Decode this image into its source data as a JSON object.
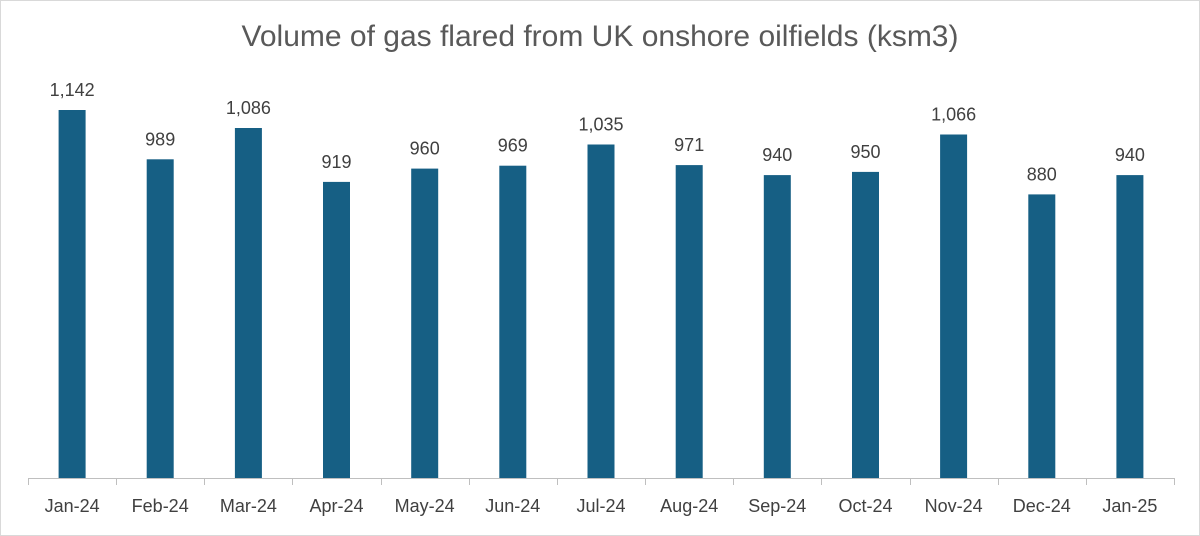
{
  "chart_data": {
    "type": "bar",
    "title": "Volume of gas flared from UK onshore oilfields (ksm3)",
    "xlabel": "",
    "ylabel": "",
    "categories": [
      "Jan-24",
      "Feb-24",
      "Mar-24",
      "Apr-24",
      "May-24",
      "Jun-24",
      "Jul-24",
      "Aug-24",
      "Sep-24",
      "Oct-24",
      "Nov-24",
      "Dec-24",
      "Jan-25"
    ],
    "values": [
      1142,
      989,
      1086,
      919,
      960,
      969,
      1035,
      971,
      940,
      950,
      1066,
      880,
      940
    ],
    "data_labels": [
      "1,142",
      "989",
      "1,086",
      "919",
      "960",
      "969",
      "1,035",
      "971",
      "940",
      "950",
      "1,066",
      "880",
      "940"
    ],
    "ylim": [
      0,
      1142
    ],
    "grid": false,
    "legend": "none",
    "bar_color": "#165f84",
    "axis_color": "#bfbfbf",
    "text_color": "#404040",
    "title_color": "#595959"
  }
}
